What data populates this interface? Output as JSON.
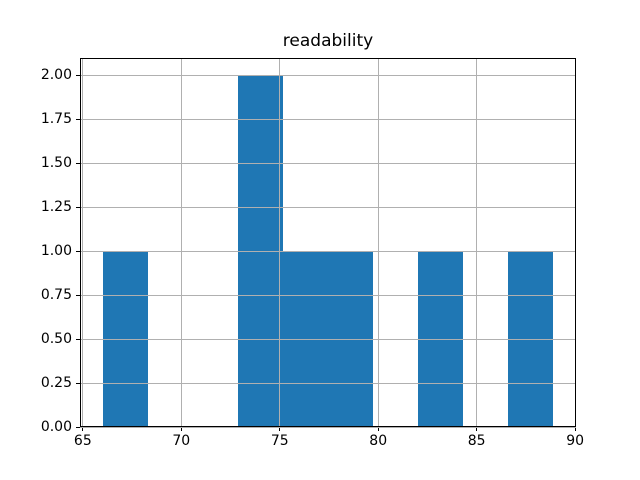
{
  "figure": {
    "background": "#ffffff"
  },
  "chart_data": {
    "type": "bar",
    "subtype": "histogram",
    "title": "readability",
    "xlabel": "",
    "ylabel": "",
    "bin_edges": [
      66.0,
      68.29,
      70.58,
      72.87,
      75.16,
      77.45,
      79.74,
      82.03,
      84.32,
      86.61,
      88.9
    ],
    "counts": [
      1,
      0,
      0,
      2,
      1,
      1,
      0,
      1,
      0,
      1
    ],
    "xlim": [
      64.855,
      90.045
    ],
    "ylim": [
      0,
      2.1
    ],
    "xticks": [
      65,
      70,
      75,
      80,
      85,
      90
    ],
    "xtick_labels": [
      "65",
      "70",
      "75",
      "80",
      "85",
      "90"
    ],
    "yticks": [
      0,
      0.25,
      0.5,
      0.75,
      1.0,
      1.25,
      1.5,
      1.75,
      2.0
    ],
    "ytick_labels": [
      "0.00",
      "0.25",
      "0.50",
      "0.75",
      "1.00",
      "1.25",
      "1.50",
      "1.75",
      "2.00"
    ],
    "grid": true,
    "grid_above_bars": true,
    "legend_position": "none",
    "colors": {
      "bar": "#1f77b4",
      "grid": "#b0b0b0",
      "spine": "#000000",
      "text": "#000000"
    }
  }
}
